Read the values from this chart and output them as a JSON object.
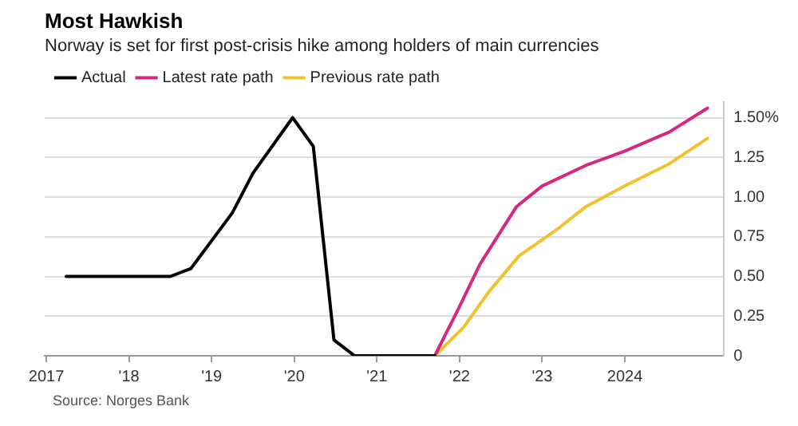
{
  "chart_data": {
    "type": "line",
    "title": "Most Hawkish",
    "subtitle": "Norway is set for first post-crisis hike among holders of main currencies",
    "series": [
      {
        "name": "Actual",
        "color": "#000000",
        "x": [
          2017.24,
          2018.5,
          2018.75,
          2019.25,
          2019.5,
          2019.98,
          2020.23,
          2020.48,
          2020.73,
          2021.7
        ],
        "values": [
          0.5,
          0.5,
          0.55,
          0.9,
          1.15,
          1.5,
          1.32,
          0.1,
          0,
          0
        ]
      },
      {
        "name": "Latest rate path",
        "color": "#d6287f",
        "x": [
          2021.7,
          2021.98,
          2022.25,
          2022.69,
          2023.0,
          2023.53,
          2024.0,
          2024.54,
          2025.0
        ],
        "values": [
          0,
          0.29,
          0.58,
          0.94,
          1.07,
          1.2,
          1.29,
          1.41,
          1.56
        ]
      },
      {
        "name": "Previous rate path",
        "color": "#f2c12e",
        "x": [
          2021.7,
          2022.05,
          2022.35,
          2022.72,
          2023.19,
          2023.53,
          2024.0,
          2024.54,
          2025.0
        ],
        "values": [
          0,
          0.18,
          0.4,
          0.63,
          0.8,
          0.94,
          1.07,
          1.21,
          1.37
        ]
      }
    ],
    "xlim": [
      2016.98,
      2025.2
    ],
    "xticks": [
      2017,
      {
        "value": 2018,
        "label": "'18"
      },
      {
        "value": 2019,
        "label": "'19"
      },
      {
        "value": 2020,
        "label": "'20"
      },
      {
        "value": 2021,
        "label": "'21"
      },
      {
        "value": 2022,
        "label": "'22"
      },
      {
        "value": 2023,
        "label": "'23"
      },
      2024
    ],
    "ylim": [
      0,
      1.6
    ],
    "yticks": [
      0,
      0.25,
      {
        "value": 0.5,
        "label": "0.50"
      },
      0.75,
      {
        "value": 1,
        "label": "1.00"
      },
      1.25,
      {
        "value": 1.5,
        "label": "1.50%"
      }
    ],
    "grid": "y",
    "legend": "top left",
    "marker": "none",
    "line_style": "solid",
    "annotations": [
      "Source: Norges Bank"
    ]
  }
}
